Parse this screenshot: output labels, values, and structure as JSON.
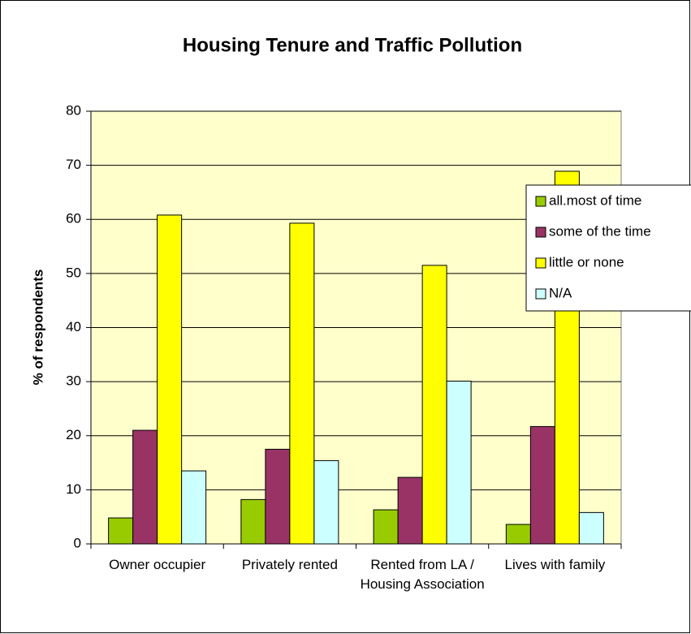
{
  "chart_data": {
    "type": "bar",
    "title": "Housing Tenure and Traffic Pollution",
    "y_label": "% of respondents",
    "categories": [
      "Owner occupier",
      "Privately rented",
      "Rented from LA / Housing Association",
      "Lives with family"
    ],
    "series": [
      {
        "name": "all.most of time",
        "color": "#99cc00",
        "values": [
          4.8,
          8.2,
          6.3,
          3.6
        ]
      },
      {
        "name": "some of the time",
        "color": "#993366",
        "values": [
          21,
          17.5,
          12.3,
          21.7
        ]
      },
      {
        "name": "little or none",
        "color": "#ffff00",
        "values": [
          60.8,
          59.3,
          51.5,
          68.9
        ]
      },
      {
        "name": "N/A",
        "color": "#ccffff",
        "values": [
          13.5,
          15.4,
          30.1,
          5.8
        ]
      }
    ],
    "ylim": [
      0,
      80
    ],
    "yticks": [
      0,
      10,
      20,
      30,
      40,
      50,
      60,
      70,
      80
    ],
    "grid": true,
    "legend": "right"
  }
}
